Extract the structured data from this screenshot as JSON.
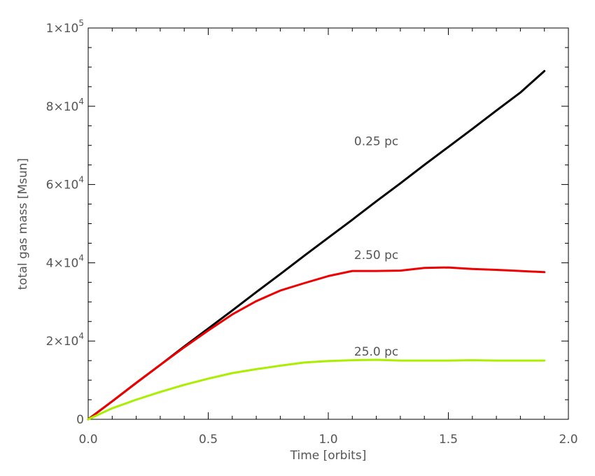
{
  "chart_data": {
    "type": "line",
    "xlabel": "Time [orbits]",
    "ylabel": "total gas mass [Msun]",
    "xlim": [
      0,
      2.0
    ],
    "ylim": [
      0,
      100000
    ],
    "grid": false,
    "x_ticks": [
      {
        "value": 0.0,
        "label": "0.0"
      },
      {
        "value": 0.5,
        "label": "0.5"
      },
      {
        "value": 1.0,
        "label": "1.0"
      },
      {
        "value": 1.5,
        "label": "1.5"
      },
      {
        "value": 2.0,
        "label": "2.0"
      }
    ],
    "y_ticks": [
      {
        "value": 0,
        "mantissa": "0",
        "exponent": ""
      },
      {
        "value": 20000,
        "mantissa": "2×10",
        "exponent": "4"
      },
      {
        "value": 40000,
        "mantissa": "4×10",
        "exponent": "4"
      },
      {
        "value": 60000,
        "mantissa": "6×10",
        "exponent": "4"
      },
      {
        "value": 80000,
        "mantissa": "8×10",
        "exponent": "4"
      },
      {
        "value": 100000,
        "mantissa": "1×10",
        "exponent": "5"
      }
    ],
    "series": [
      {
        "name": "0.25 pc",
        "color": "#000000",
        "label_at": {
          "x": 1.2,
          "y": 70000
        },
        "points": [
          [
            0,
            0
          ],
          [
            0.1,
            4600
          ],
          [
            0.2,
            9300
          ],
          [
            0.3,
            13900
          ],
          [
            0.4,
            18600
          ],
          [
            0.5,
            23200
          ],
          [
            0.6,
            27800
          ],
          [
            0.7,
            32500
          ],
          [
            0.8,
            37100
          ],
          [
            0.9,
            41800
          ],
          [
            1.0,
            46400
          ],
          [
            1.1,
            51000
          ],
          [
            1.2,
            55700
          ],
          [
            1.3,
            60300
          ],
          [
            1.4,
            65000
          ],
          [
            1.5,
            69600
          ],
          [
            1.6,
            74200
          ],
          [
            1.7,
            78900
          ],
          [
            1.8,
            83500
          ],
          [
            1.9,
            89000
          ]
        ]
      },
      {
        "name": "2.50 pc",
        "color": "#ee0000",
        "label_at": {
          "x": 1.2,
          "y": 41000
        },
        "points": [
          [
            0,
            0
          ],
          [
            0.1,
            4600
          ],
          [
            0.2,
            9300
          ],
          [
            0.3,
            13900
          ],
          [
            0.4,
            18400
          ],
          [
            0.5,
            22700
          ],
          [
            0.6,
            26800
          ],
          [
            0.7,
            30200
          ],
          [
            0.8,
            32900
          ],
          [
            0.9,
            34800
          ],
          [
            1.0,
            36600
          ],
          [
            1.1,
            37900
          ],
          [
            1.2,
            37900
          ],
          [
            1.3,
            38000
          ],
          [
            1.4,
            38700
          ],
          [
            1.5,
            38800
          ],
          [
            1.6,
            38400
          ],
          [
            1.7,
            38200
          ],
          [
            1.8,
            37900
          ],
          [
            1.9,
            37600
          ]
        ]
      },
      {
        "name": "25.0 pc",
        "color": "#aaee00",
        "label_at": {
          "x": 1.2,
          "y": 16300
        },
        "points": [
          [
            0,
            0
          ],
          [
            0.1,
            2800
          ],
          [
            0.2,
            5000
          ],
          [
            0.3,
            7000
          ],
          [
            0.4,
            8800
          ],
          [
            0.5,
            10400
          ],
          [
            0.6,
            11800
          ],
          [
            0.7,
            12800
          ],
          [
            0.8,
            13700
          ],
          [
            0.9,
            14500
          ],
          [
            1.0,
            14900
          ],
          [
            1.1,
            15100
          ],
          [
            1.2,
            15200
          ],
          [
            1.3,
            15000
          ],
          [
            1.4,
            15000
          ],
          [
            1.5,
            15000
          ],
          [
            1.6,
            15100
          ],
          [
            1.7,
            15000
          ],
          [
            1.8,
            15000
          ],
          [
            1.9,
            15000
          ]
        ]
      }
    ]
  }
}
